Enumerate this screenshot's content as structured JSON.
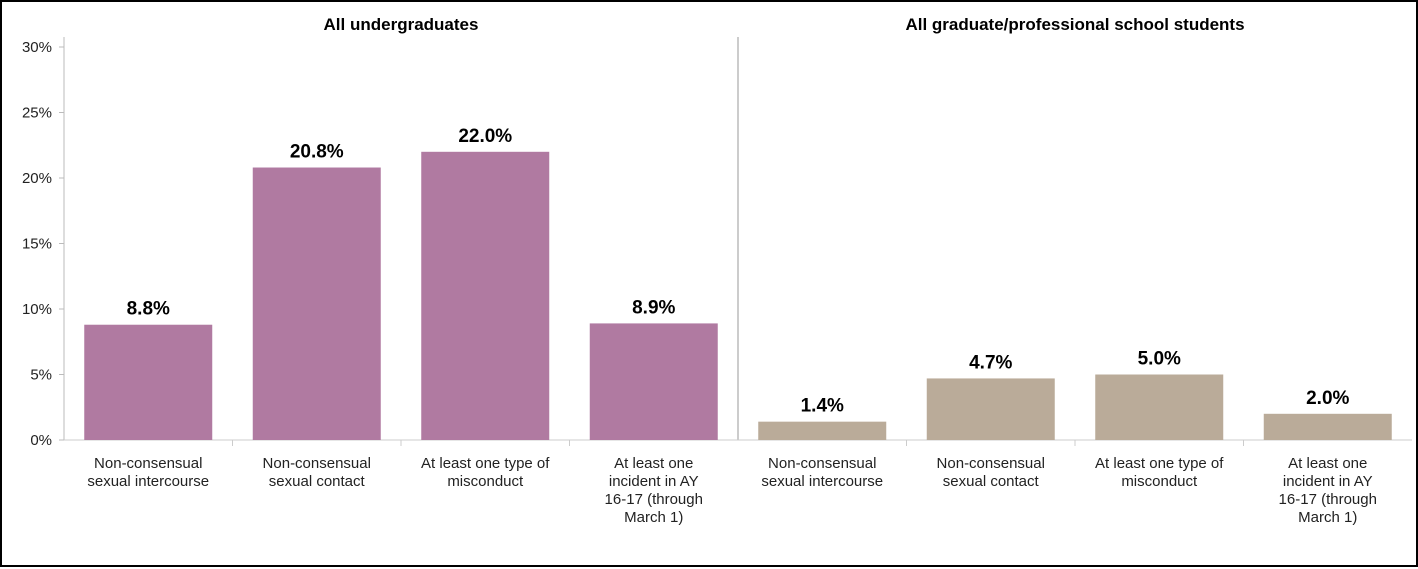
{
  "chart_data": {
    "type": "bar",
    "y_axis": {
      "min": 0,
      "max": 30,
      "ticks": [
        0,
        5,
        10,
        15,
        20,
        25,
        30
      ],
      "tick_labels": [
        "0%",
        "5%",
        "10%",
        "15%",
        "20%",
        "25%",
        "30%"
      ]
    },
    "grid": false,
    "legend": "none",
    "panels": [
      {
        "title": "All undergraduates",
        "color": "#b07aa1",
        "categories": [
          [
            "Non-consensual",
            "sexual intercourse"
          ],
          [
            "Non-consensual",
            "sexual contact"
          ],
          [
            "At least one type of",
            "misconduct"
          ],
          [
            "At least one",
            "incident in AY",
            "16-17 (through",
            "March 1)"
          ]
        ],
        "values": [
          8.8,
          20.8,
          22.0,
          8.9
        ],
        "value_labels": [
          "8.8%",
          "20.8%",
          "22.0%",
          "8.9%"
        ]
      },
      {
        "title": "All graduate/professional school students",
        "color": "#baab99",
        "categories": [
          [
            "Non-consensual",
            "sexual intercourse"
          ],
          [
            "Non-consensual",
            "sexual contact"
          ],
          [
            "At least one type of",
            "misconduct"
          ],
          [
            "At least one",
            "incident in AY",
            "16-17 (through",
            "March 1)"
          ]
        ],
        "values": [
          1.4,
          4.7,
          5.0,
          2.0
        ],
        "value_labels": [
          "1.4%",
          "4.7%",
          "5.0%",
          "2.0%"
        ]
      }
    ]
  }
}
